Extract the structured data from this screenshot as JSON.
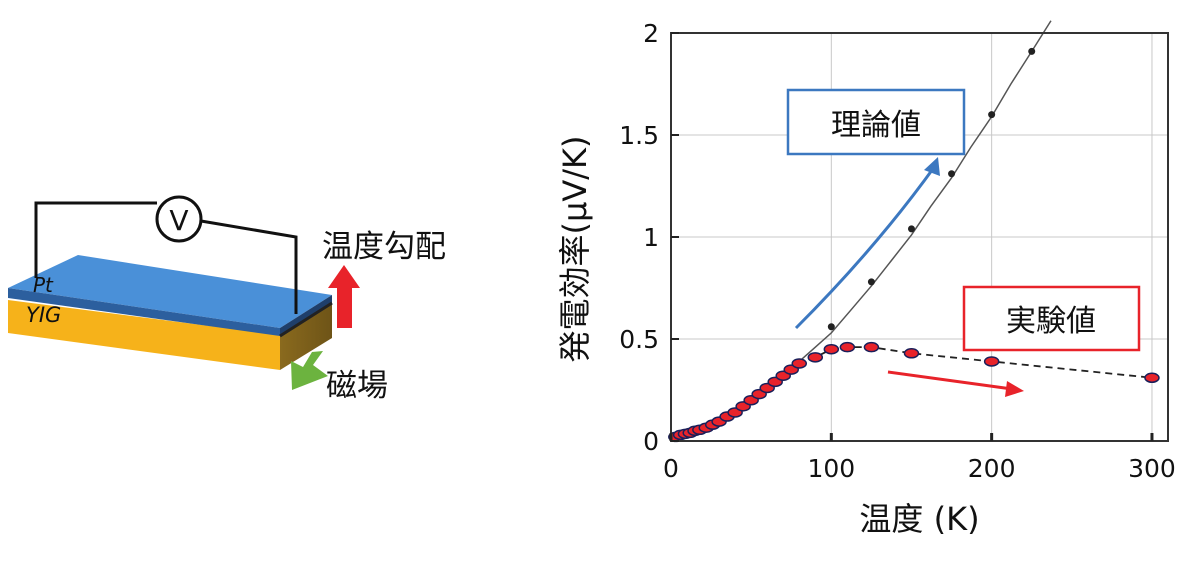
{
  "diagram": {
    "voltmeter": "V",
    "top_layer": "Pt",
    "bottom_layer": "YIG",
    "gradient_label": "温度勾配",
    "field_label": "磁場",
    "colors": {
      "pt": "#4a90d8",
      "yig": "#f6b21a",
      "gradient_arrow": "#e8232a",
      "field_arrow": "#6cb33f"
    }
  },
  "chart_data": {
    "type": "scatter",
    "xlabel": "温度 (K)",
    "ylabel": "発電効率(µV/K)",
    "xlim": [
      0,
      310
    ],
    "ylim": [
      0,
      2
    ],
    "xticks": [
      0,
      100,
      200,
      300
    ],
    "yticks": [
      0,
      0.5,
      1,
      1.5,
      2
    ],
    "ytick_labels": [
      "0",
      "0.5",
      "1",
      "1.5",
      "2"
    ],
    "grid": true,
    "series": [
      {
        "name": "理論値",
        "color": "#222222",
        "line": "solid",
        "x": [
          5,
          10,
          15,
          20,
          25,
          30,
          40,
          50,
          60,
          70,
          80,
          90,
          100,
          112,
          125,
          137,
          150,
          162,
          175,
          187,
          200,
          212,
          225,
          237
        ],
        "y": [
          0.02,
          0.035,
          0.05,
          0.065,
          0.08,
          0.1,
          0.14,
          0.19,
          0.25,
          0.32,
          0.39,
          0.46,
          0.53,
          0.64,
          0.76,
          0.88,
          1.01,
          1.15,
          1.29,
          1.44,
          1.59,
          1.75,
          1.91,
          2.06
        ],
        "markers_x": [
          100,
          125,
          150,
          175,
          200,
          225
        ],
        "markers_y": [
          0.56,
          0.78,
          1.04,
          1.31,
          1.6,
          1.91
        ],
        "annotation": {
          "text": "理論値",
          "box_color": "#3c78c0",
          "arrow_color": "#3c78c0"
        }
      },
      {
        "name": "実験値",
        "color": "#e8232a",
        "line": "dashed",
        "x": [
          3,
          6,
          9,
          12,
          15,
          18,
          22,
          26,
          30,
          35,
          40,
          45,
          50,
          55,
          60,
          65,
          70,
          75,
          80,
          90,
          100,
          110,
          125,
          150,
          200,
          300
        ],
        "y": [
          0.02,
          0.03,
          0.035,
          0.04,
          0.05,
          0.055,
          0.065,
          0.08,
          0.095,
          0.12,
          0.14,
          0.17,
          0.2,
          0.23,
          0.26,
          0.29,
          0.32,
          0.35,
          0.38,
          0.41,
          0.45,
          0.46,
          0.46,
          0.43,
          0.39,
          0.31
        ],
        "annotation": {
          "text": "実験値",
          "box_color": "#e8232a",
          "arrow_color": "#e8232a"
        }
      }
    ]
  }
}
